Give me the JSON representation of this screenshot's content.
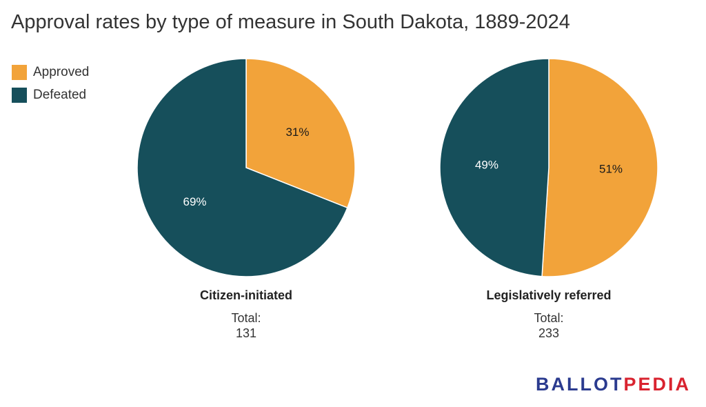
{
  "title": "Approval rates by type of measure in South Dakota, 1889-2024",
  "colors": {
    "approved": "#f2a33a",
    "defeated": "#164f5b"
  },
  "legend": [
    {
      "label": "Approved",
      "color": "#f2a33a"
    },
    {
      "label": "Defeated",
      "color": "#164f5b"
    }
  ],
  "chart_data": [
    {
      "type": "pie",
      "title": "Citizen-initiated",
      "total_label": "Total:",
      "total": 131,
      "slices": [
        {
          "name": "Approved",
          "value": 31,
          "label": "31%",
          "color": "#f2a33a"
        },
        {
          "name": "Defeated",
          "value": 69,
          "label": "69%",
          "color": "#164f5b"
        }
      ]
    },
    {
      "type": "pie",
      "title": "Legislatively referred",
      "total_label": "Total:",
      "total": 233,
      "slices": [
        {
          "name": "Approved",
          "value": 51,
          "label": "51%",
          "color": "#f2a33a"
        },
        {
          "name": "Defeated",
          "value": 49,
          "label": "49%",
          "color": "#164f5b"
        }
      ]
    }
  ],
  "brand": {
    "part1": "BALLOT",
    "part2": "PEDIA"
  }
}
